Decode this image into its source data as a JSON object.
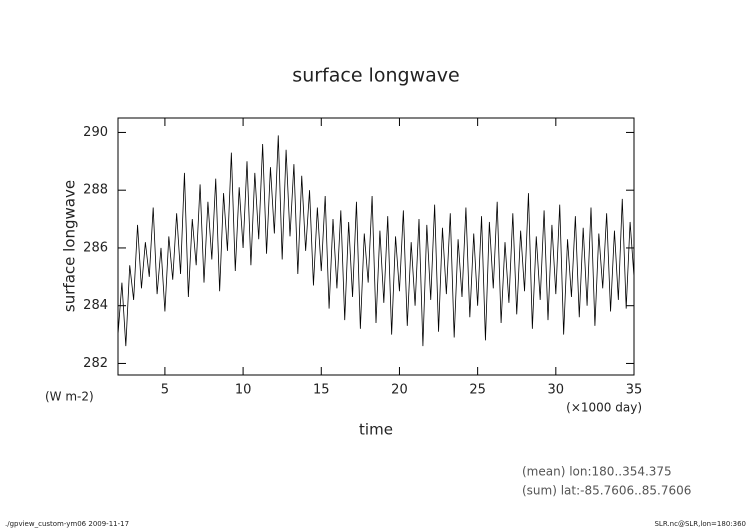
{
  "chart_data": {
    "type": "line",
    "title": "surface longwave",
    "y_label": "surface longwave",
    "y_unit": "(W m-2)",
    "x_label": "time",
    "x_unit": "(×1000 day)",
    "annotations": [
      "(mean) lon:180..354.375",
      "(sum) lat:-85.7606..85.7606"
    ],
    "footer_left": "./gpview_custom-ym06  2009-11-17",
    "footer_right": "SLR.nc@SLR,lon=180:360",
    "color": "#000000",
    "xlim": [
      2,
      35
    ],
    "xticks": [
      5,
      10,
      15,
      20,
      25,
      30,
      35
    ],
    "ylim": [
      281.6,
      290.5
    ],
    "yticks": [
      282,
      284,
      286,
      288,
      290
    ],
    "x": [
      2.0,
      2.25,
      2.5,
      2.75,
      3.0,
      3.25,
      3.5,
      3.75,
      4.0,
      4.25,
      4.5,
      4.75,
      5.0,
      5.25,
      5.5,
      5.75,
      6.0,
      6.25,
      6.5,
      6.75,
      7.0,
      7.25,
      7.5,
      7.75,
      8.0,
      8.25,
      8.5,
      8.75,
      9.0,
      9.25,
      9.5,
      9.75,
      10.0,
      10.25,
      10.5,
      10.75,
      11.0,
      11.25,
      11.5,
      11.75,
      12.0,
      12.25,
      12.5,
      12.75,
      13.0,
      13.25,
      13.5,
      13.75,
      14.0,
      14.25,
      14.5,
      14.75,
      15.0,
      15.25,
      15.5,
      15.75,
      16.0,
      16.25,
      16.5,
      16.75,
      17.0,
      17.25,
      17.5,
      17.75,
      18.0,
      18.25,
      18.5,
      18.75,
      19.0,
      19.25,
      19.5,
      19.75,
      20.0,
      20.25,
      20.5,
      20.75,
      21.0,
      21.25,
      21.5,
      21.75,
      22.0,
      22.25,
      22.5,
      22.75,
      23.0,
      23.25,
      23.5,
      23.75,
      24.0,
      24.25,
      24.5,
      24.75,
      25.0,
      25.25,
      25.5,
      25.75,
      26.0,
      26.25,
      26.5,
      26.75,
      27.0,
      27.25,
      27.5,
      27.75,
      28.0,
      28.25,
      28.5,
      28.75,
      29.0,
      29.25,
      29.5,
      29.75,
      30.0,
      30.25,
      30.5,
      30.75,
      31.0,
      31.25,
      31.5,
      31.75,
      32.0,
      32.25,
      32.5,
      32.75,
      33.0,
      33.25,
      33.5,
      33.75,
      34.0,
      34.25,
      34.5,
      34.75,
      35.0
    ],
    "values": [
      283.0,
      284.8,
      282.6,
      285.4,
      284.2,
      286.8,
      284.6,
      286.2,
      285.0,
      287.4,
      284.4,
      286.0,
      283.8,
      286.4,
      284.9,
      287.2,
      285.1,
      288.6,
      284.3,
      287.0,
      285.4,
      288.2,
      284.8,
      287.6,
      285.6,
      288.4,
      284.5,
      287.9,
      285.9,
      289.3,
      285.2,
      288.1,
      286.0,
      289.0,
      285.4,
      288.6,
      286.3,
      289.6,
      285.8,
      288.8,
      286.5,
      289.9,
      285.6,
      289.4,
      286.4,
      288.9,
      285.1,
      288.5,
      285.9,
      288.0,
      284.7,
      287.4,
      285.2,
      287.8,
      283.9,
      287.0,
      284.6,
      287.3,
      283.5,
      286.9,
      284.3,
      287.6,
      283.2,
      286.5,
      284.8,
      287.8,
      283.4,
      286.6,
      284.1,
      287.1,
      283.0,
      286.4,
      284.5,
      287.3,
      283.3,
      286.2,
      284.0,
      287.0,
      282.6,
      286.8,
      284.2,
      287.5,
      283.1,
      286.7,
      284.4,
      287.2,
      282.9,
      286.3,
      284.3,
      287.4,
      283.6,
      286.5,
      284.0,
      287.1,
      282.8,
      286.9,
      284.6,
      287.6,
      283.4,
      286.2,
      284.1,
      287.2,
      283.7,
      286.6,
      284.5,
      287.9,
      283.2,
      286.4,
      284.2,
      287.3,
      283.5,
      286.8,
      284.4,
      287.5,
      283.0,
      286.3,
      284.3,
      287.1,
      283.6,
      286.7,
      284.0,
      287.4,
      283.3,
      286.5,
      284.6,
      287.2,
      283.8,
      286.6,
      284.2,
      287.7,
      283.9,
      286.9,
      285.0
    ]
  }
}
